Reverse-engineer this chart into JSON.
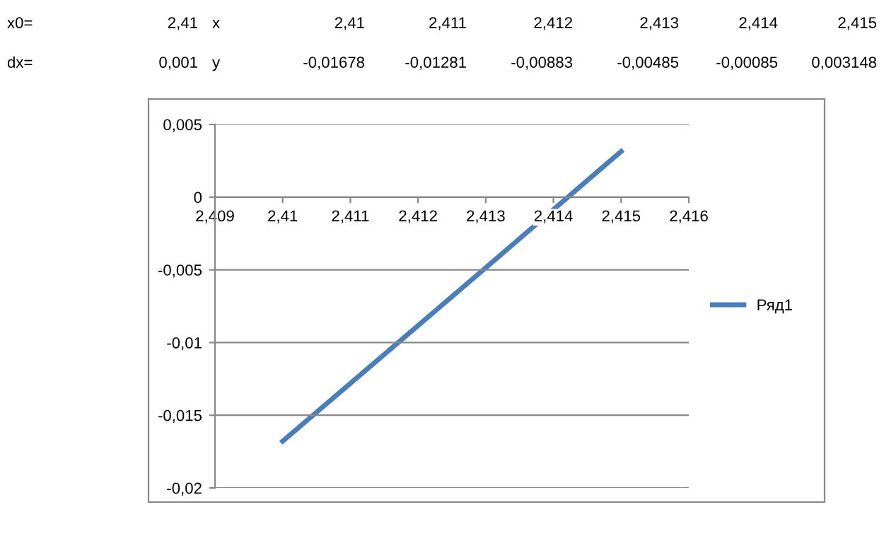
{
  "chart_data": {
    "type": "line",
    "annotations": [
      "x0=",
      "2,41",
      "dx=",
      "0,001",
      "x",
      "y",
      "2,41",
      "2,411",
      "2,412",
      "2,413",
      "2,414",
      "2,415",
      "-0,01678",
      "-0,01281",
      "-0,00883",
      "-0,00485",
      "-0,00085",
      "0,003148"
    ],
    "x": [
      2.41,
      2.411,
      2.412,
      2.413,
      2.414,
      2.415
    ],
    "series": [
      {
        "name": "Ряд1",
        "color": "#4a7ebb",
        "values": [
          -0.01678,
          -0.01281,
          -0.00883,
          -0.00485,
          -0.00085,
          0.003148
        ]
      }
    ],
    "xlim": [
      2.409,
      2.416
    ],
    "xticks": [
      {
        "value": 2.409,
        "label": "2,409"
      },
      {
        "value": 2.41,
        "label": "2,41"
      },
      {
        "value": 2.411,
        "label": "2,411"
      },
      {
        "value": 2.412,
        "label": "2,412"
      },
      {
        "value": 2.413,
        "label": "2,413"
      },
      {
        "value": 2.414,
        "label": "2,414"
      },
      {
        "value": 2.415,
        "label": "2,415"
      },
      {
        "value": 2.416,
        "label": "2,416"
      }
    ],
    "ylim": [
      -0.02,
      0.005
    ],
    "yticks": [
      {
        "value": -0.02,
        "label": "-0,02"
      },
      {
        "value": -0.015,
        "label": "-0,015"
      },
      {
        "value": -0.01,
        "label": "-0,01"
      },
      {
        "value": -0.005,
        "label": "-0,005"
      },
      0,
      {
        "value": 0.005,
        "label": "0,005"
      }
    ],
    "grid": "y",
    "legend": "right",
    "marker": "none",
    "line_style": "solid"
  }
}
